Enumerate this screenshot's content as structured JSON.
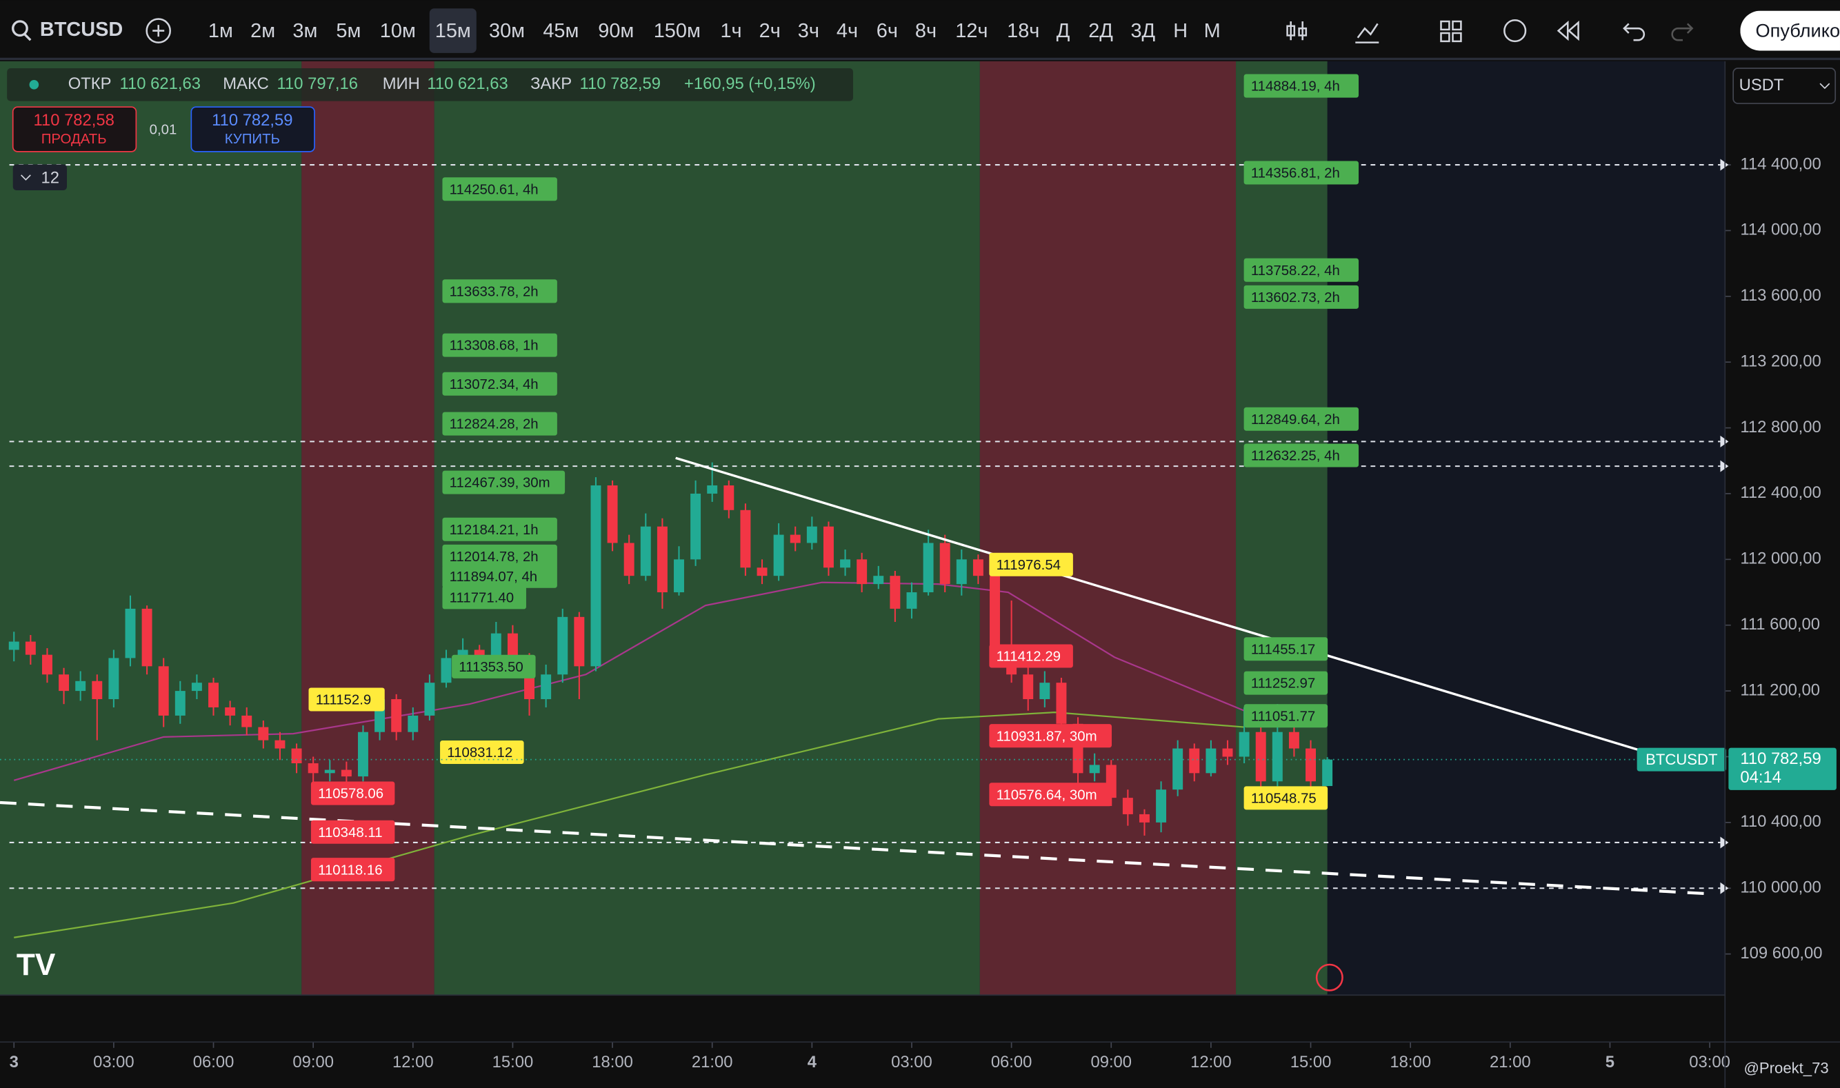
{
  "toolbar": {
    "symbol": "BTCUSD",
    "intervals": [
      "1м",
      "2м",
      "3м",
      "5м",
      "10м",
      "15м",
      "30м",
      "45м",
      "90м",
      "150м",
      "1ч",
      "2ч",
      "3ч",
      "4ч",
      "6ч",
      "8ч",
      "12ч",
      "18ч",
      "Д",
      "2Д",
      "3Д",
      "Н",
      "М"
    ],
    "publish": "Опубликовать"
  },
  "legend": {
    "open_label": "ОТКР",
    "open": "110 621,63",
    "high_label": "МАКС",
    "high": "110 797,16",
    "low_label": "МИН",
    "low": "110 621,63",
    "close_label": "ЗАКР",
    "close": "110 782,59",
    "change": "+160,95 (+0,15%)"
  },
  "trade": {
    "sell_price": "110 782,58",
    "sell": "ПРОДАТЬ",
    "spread": "0,01",
    "buy_price": "110 782,59",
    "buy": "КУПИТЬ",
    "indicators": "12"
  },
  "currency": "USDT",
  "price_tag": {
    "symbol": "BTCUSDT",
    "price": "110 782,59",
    "timer": "04:14"
  },
  "watermark": "@Proekt_73",
  "chart_data": {
    "type": "candlestick",
    "up_color": "#22ab94",
    "down_color": "#f23645",
    "xlim": [
      -0.42,
      51.46
    ],
    "ylim": [
      109350,
      115030
    ],
    "xticks": [
      {
        "value": 0,
        "label": "3"
      },
      {
        "value": 3,
        "label": "03:00"
      },
      {
        "value": 6,
        "label": "06:00"
      },
      {
        "value": 9,
        "label": "09:00"
      },
      {
        "value": 12,
        "label": "12:00"
      },
      {
        "value": 15,
        "label": "15:00"
      },
      {
        "value": 18,
        "label": "18:00"
      },
      {
        "value": 21,
        "label": "21:00"
      },
      {
        "value": 24,
        "label": "4"
      },
      {
        "value": 27,
        "label": "03:00"
      },
      {
        "value": 30,
        "label": "06:00"
      },
      {
        "value": 33,
        "label": "09:00"
      },
      {
        "value": 36,
        "label": "12:00"
      },
      {
        "value": 39,
        "label": "15:00"
      },
      {
        "value": 42,
        "label": "18:00"
      },
      {
        "value": 45,
        "label": "21:00"
      },
      {
        "value": 48,
        "label": "5"
      },
      {
        "value": 51,
        "label": "03:00"
      }
    ],
    "yticks": [
      {
        "value": 109600,
        "label": "109 600,00"
      },
      {
        "value": 110000,
        "label": "110 000,00"
      },
      {
        "value": 110400,
        "label": "110 400,00"
      },
      {
        "value": 110800,
        "label": "110 800,00"
      },
      {
        "value": 111200,
        "label": "111 200,00"
      },
      {
        "value": 111600,
        "label": "111 600,00"
      },
      {
        "value": 112000,
        "label": "112 000,00"
      },
      {
        "value": 112400,
        "label": "112 400,00"
      },
      {
        "value": 112800,
        "label": "112 800,00"
      },
      {
        "value": 113200,
        "label": "113 200,00"
      },
      {
        "value": 113600,
        "label": "113 600,00"
      },
      {
        "value": 114000,
        "label": "114 000,00"
      },
      {
        "value": 114400,
        "label": "114 400,00"
      }
    ],
    "x": [
      0,
      0.5,
      1,
      1.5,
      2,
      2.5,
      3,
      3.5,
      4,
      4.5,
      5,
      5.5,
      6,
      6.5,
      7,
      7.5,
      8,
      8.5,
      9,
      9.5,
      10,
      10.5,
      11,
      11.5,
      12,
      12.5,
      13,
      13.5,
      14,
      14.5,
      15,
      15.5,
      16,
      16.5,
      17,
      17.5,
      18,
      18.5,
      19,
      19.5,
      20,
      20.5,
      21,
      21.5,
      22,
      22.5,
      23,
      23.5,
      24,
      24.5,
      25,
      25.5,
      26,
      26.5,
      27,
      27.5,
      28,
      28.5,
      29,
      29.5,
      30,
      30.5,
      31,
      31.5,
      32,
      32.5,
      33,
      33.5,
      34,
      34.5,
      35,
      35.5,
      36,
      36.5,
      37,
      37.5,
      38,
      38.5,
      39,
      39.5
    ],
    "open": [
      111450,
      111500,
      111420,
      111300,
      111200,
      111260,
      111150,
      111400,
      111700,
      111350,
      111050,
      111200,
      111250,
      111100,
      111050,
      110980,
      110900,
      110850,
      110760,
      110700,
      110720,
      110680,
      110950,
      111150,
      110950,
      111050,
      111250,
      111400,
      111450,
      111350,
      111550,
      111400,
      111150,
      111300,
      111650,
      111350,
      112450,
      112100,
      111900,
      112200,
      111800,
      112000,
      112400,
      112450,
      112300,
      111950,
      111900,
      112150,
      112100,
      112200,
      111950,
      112000,
      111850,
      111900,
      111700,
      111800,
      112100,
      111850,
      112000,
      111900,
      111450,
      111300,
      111150,
      111250,
      111000,
      110700,
      110750,
      110550,
      110450,
      110400,
      110600,
      110850,
      110700,
      110850,
      110800,
      110950,
      110650,
      110950,
      110850,
      110621.63
    ],
    "high": [
      111560,
      111540,
      111460,
      111340,
      111320,
      111300,
      111450,
      111780,
      111720,
      111400,
      111260,
      111300,
      111280,
      111140,
      111100,
      111020,
      110950,
      110880,
      110800,
      110780,
      110770,
      110990,
      111200,
      111180,
      111100,
      111300,
      111450,
      111520,
      111480,
      111620,
      111600,
      111430,
      111360,
      111700,
      111680,
      112500,
      112480,
      112150,
      112280,
      112250,
      112080,
      112480,
      112590,
      112480,
      112340,
      112000,
      112220,
      112200,
      112260,
      112230,
      112060,
      112040,
      111960,
      111930,
      111860,
      112180,
      112150,
      112060,
      112030,
      111920,
      111750,
      111380,
      111320,
      111280,
      111040,
      110820,
      110780,
      110600,
      110480,
      110650,
      110900,
      110880,
      110900,
      110900,
      111100,
      110980,
      111120,
      111000,
      110900,
      110797.16
    ],
    "low": [
      111380,
      111360,
      111250,
      111120,
      111140,
      110900,
      111100,
      111350,
      111300,
      110980,
      111000,
      111150,
      111050,
      110990,
      110930,
      110850,
      110780,
      110700,
      110640,
      110650,
      110620,
      110650,
      110900,
      110900,
      110900,
      111020,
      111220,
      111380,
      111300,
      111320,
      111350,
      111050,
      111100,
      111250,
      111150,
      111320,
      112050,
      111850,
      111870,
      111700,
      111780,
      111960,
      112350,
      112250,
      111900,
      111850,
      111870,
      112050,
      112060,
      111900,
      111900,
      111800,
      111820,
      111620,
      111640,
      111780,
      111800,
      111780,
      111850,
      111380,
      111250,
      111080,
      111100,
      110950,
      110640,
      110650,
      110500,
      110380,
      110320,
      110340,
      110560,
      110650,
      110680,
      110750,
      110760,
      110600,
      110620,
      110800,
      110600,
      110621.63
    ],
    "close": [
      111500,
      111420,
      111300,
      111200,
      111260,
      111150,
      111400,
      111700,
      111350,
      111050,
      111200,
      111250,
      111100,
      111050,
      110980,
      110900,
      110850,
      110760,
      110700,
      110720,
      110680,
      110950,
      111150,
      110950,
      111050,
      111250,
      111400,
      111450,
      111350,
      111550,
      111400,
      111150,
      111300,
      111650,
      111350,
      112450,
      112100,
      111900,
      112200,
      111800,
      112000,
      112400,
      112450,
      112300,
      111950,
      111900,
      112150,
      112100,
      112200,
      111950,
      112000,
      111850,
      111900,
      111700,
      111800,
      112100,
      111850,
      112000,
      111900,
      111450,
      111300,
      111150,
      111250,
      111000,
      110700,
      110750,
      110550,
      110450,
      110400,
      110600,
      110850,
      110700,
      110850,
      110800,
      110950,
      110650,
      110950,
      110850,
      110650,
      110782.59
    ],
    "lines": [
      {
        "color": "#a9378c",
        "x": [
          0,
          4.5,
          8.4,
          13.7,
          17.2,
          20.8,
          24.3,
          27.8,
          29.9,
          33.1,
          37
        ],
        "values": [
          110656,
          110920,
          110940,
          111120,
          111300,
          111720,
          111860,
          111850,
          111800,
          111405,
          111080
        ]
      },
      {
        "color": "#7fb33a",
        "x": [
          0,
          6.6,
          13.7,
          20.8,
          27.8,
          31.3,
          37
        ],
        "values": [
          109700,
          109910,
          110320,
          110690,
          111030,
          111070,
          110980
        ]
      }
    ],
    "trendlines": [
      {
        "color": "#ffffff",
        "dashed": false,
        "x": [
          19.9,
          48.98
        ],
        "y": [
          112617,
          110834
        ]
      },
      {
        "color": "#ffffff",
        "dashed": true,
        "x": [
          -0.42,
          51.1
        ],
        "y": [
          110521,
          109965
        ]
      }
    ],
    "hlines": [
      114400,
      112717,
      112567,
      110278,
      110000
    ],
    "zones": [
      {
        "start": -0.42,
        "end": 8.65,
        "color": "#2f5a35"
      },
      {
        "start": 8.65,
        "end": 12.64,
        "color": "#6b2a33"
      },
      {
        "start": 12.64,
        "end": 29.05,
        "color": "#2f5a35"
      },
      {
        "start": 29.05,
        "end": 36.75,
        "color": "#6b2a33"
      },
      {
        "start": 36.75,
        "end": 39.5,
        "color": "#2f5a35"
      }
    ],
    "labels": [
      {
        "text": "114250.61, 4h",
        "color": "#4caf50"
      },
      {
        "text": "113633.78, 2h",
        "color": "#4caf50"
      },
      {
        "text": "113308.68, 1h",
        "color": "#4caf50"
      },
      {
        "text": "113072.34, 4h",
        "color": "#4caf50"
      },
      {
        "text": "112824.28, 2h",
        "color": "#4caf50"
      },
      {
        "text": "112467.39, 30m",
        "color": "#4caf50"
      },
      {
        "text": "112184.21, 1h",
        "color": "#4caf50"
      },
      {
        "text": "112014.78, 2h",
        "color": "#4caf50"
      },
      {
        "text": "111894.07, 4h",
        "color": "#4caf50"
      },
      {
        "text": "111771.40",
        "color": "#4caf50"
      },
      {
        "text": "111353.50",
        "color": "#4caf50"
      },
      {
        "text": "111152.9",
        "color": "#ffeb3b"
      },
      {
        "text": "110831.12",
        "color": "#ffeb3b"
      },
      {
        "text": "111976.54",
        "color": "#ffeb3b"
      },
      {
        "text": "110548.75",
        "color": "#ffeb3b"
      },
      {
        "text": "110578.06",
        "color": "#f23645"
      },
      {
        "text": "110348.11",
        "color": "#f23645"
      },
      {
        "text": "110118.16",
        "color": "#f23645"
      },
      {
        "text": "111412.29",
        "color": "#f23645"
      },
      {
        "text": "110931.87, 30m",
        "color": "#f23645"
      },
      {
        "text": "110576.64, 30m",
        "color": "#f23645"
      },
      {
        "text": "114884.19, 4h",
        "color": "#4caf50"
      },
      {
        "text": "114356.81, 2h",
        "color": "#4caf50"
      },
      {
        "text": "113758.22, 4h",
        "color": "#4caf50"
      },
      {
        "text": "113602.73, 2h",
        "color": "#4caf50"
      },
      {
        "text": "112849.64, 2h",
        "color": "#4caf50"
      },
      {
        "text": "112632.25, 4h",
        "color": "#4caf50"
      },
      {
        "text": "111455.17",
        "color": "#4caf50"
      },
      {
        "text": "111252.97",
        "color": "#4caf50"
      },
      {
        "text": "111051.77",
        "color": "#4caf50"
      }
    ]
  }
}
